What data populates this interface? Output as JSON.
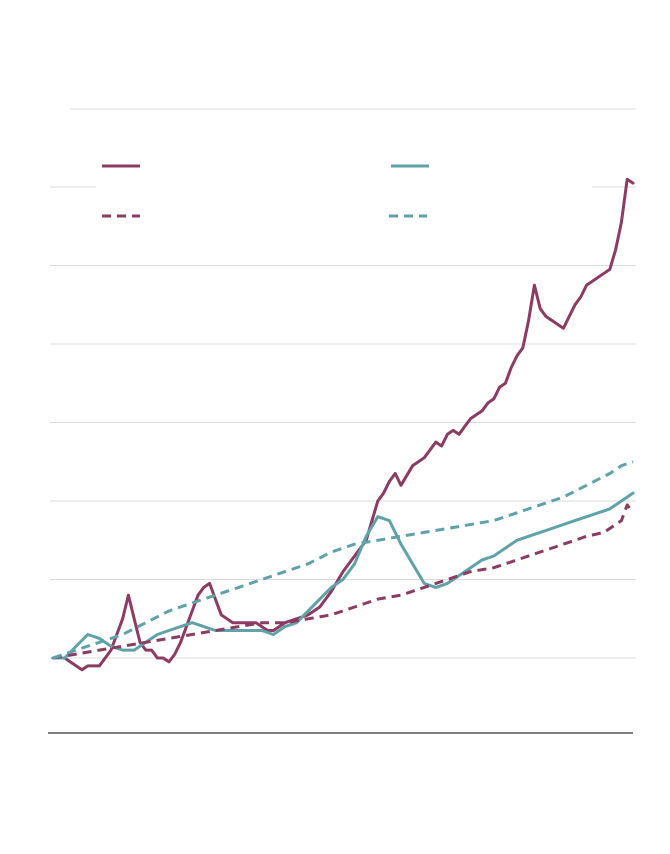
{
  "chart_data": {
    "type": "line",
    "title": "",
    "xlabel": "",
    "ylabel": "",
    "grid": true,
    "ylim": [
      -1,
      7
    ],
    "xlim": [
      0,
      100
    ],
    "y_gridlines": [
      0,
      1,
      2,
      3,
      4,
      5,
      6
    ],
    "legend": {
      "placement": "top",
      "entries": [
        {
          "series": "s1",
          "label": ""
        },
        {
          "series": "s2",
          "label": ""
        },
        {
          "series": "s3",
          "label": ""
        },
        {
          "series": "s4",
          "label": ""
        }
      ]
    },
    "series": [
      {
        "id": "s1",
        "color": "#8c3b63",
        "style": "solid",
        "x": [
          0,
          2,
          4,
          5,
          6,
          8,
          10,
          12,
          13,
          14,
          15,
          16,
          17,
          18,
          19,
          20,
          21,
          22,
          23,
          24,
          25,
          26,
          27,
          28,
          29,
          30,
          31,
          32,
          33,
          34,
          35,
          36,
          37,
          38,
          40,
          42,
          44,
          46,
          48,
          50,
          52,
          54,
          55,
          56,
          57,
          58,
          59,
          60,
          62,
          64,
          66,
          67,
          68,
          69,
          70,
          71,
          72,
          73,
          74,
          75,
          76,
          77,
          78,
          79,
          80,
          81,
          82,
          83,
          84,
          85,
          86,
          87,
          88,
          89,
          90,
          91,
          92,
          93,
          94,
          95,
          96,
          97,
          98,
          99,
          100
        ],
        "y": [
          0,
          0,
          -0.1,
          -0.15,
          -0.1,
          -0.1,
          0.1,
          0.5,
          0.8,
          0.5,
          0.2,
          0.1,
          0.1,
          0,
          0,
          -0.05,
          0.05,
          0.2,
          0.4,
          0.6,
          0.8,
          0.9,
          0.95,
          0.75,
          0.55,
          0.5,
          0.45,
          0.45,
          0.45,
          0.45,
          0.45,
          0.4,
          0.35,
          0.35,
          0.45,
          0.5,
          0.55,
          0.65,
          0.85,
          1.1,
          1.3,
          1.5,
          1.75,
          2,
          2.1,
          2.25,
          2.35,
          2.2,
          2.45,
          2.55,
          2.75,
          2.7,
          2.85,
          2.9,
          2.85,
          2.95,
          3.05,
          3.1,
          3.15,
          3.25,
          3.3,
          3.45,
          3.5,
          3.7,
          3.85,
          3.95,
          4.3,
          4.75,
          4.45,
          4.35,
          4.3,
          4.25,
          4.2,
          4.35,
          4.5,
          4.6,
          4.75,
          4.8,
          4.85,
          4.9,
          4.95,
          5.2,
          5.55,
          6.1,
          6.05
        ]
      },
      {
        "id": "s2",
        "color": "#5fa3a8",
        "style": "solid",
        "x": [
          0,
          2,
          4,
          6,
          8,
          10,
          12,
          14,
          16,
          18,
          20,
          22,
          24,
          26,
          28,
          30,
          32,
          34,
          36,
          38,
          40,
          42,
          44,
          46,
          48,
          50,
          52,
          54,
          56,
          58,
          60,
          62,
          64,
          66,
          68,
          70,
          72,
          74,
          76,
          78,
          80,
          82,
          84,
          86,
          88,
          90,
          92,
          94,
          96,
          98,
          100
        ],
        "y": [
          0,
          0,
          0.15,
          0.3,
          0.25,
          0.15,
          0.1,
          0.1,
          0.2,
          0.3,
          0.35,
          0.4,
          0.45,
          0.4,
          0.35,
          0.35,
          0.35,
          0.35,
          0.35,
          0.3,
          0.4,
          0.45,
          0.6,
          0.75,
          0.9,
          1.0,
          1.2,
          1.55,
          1.8,
          1.75,
          1.45,
          1.2,
          0.95,
          0.9,
          0.95,
          1.05,
          1.15,
          1.25,
          1.3,
          1.4,
          1.5,
          1.55,
          1.6,
          1.65,
          1.7,
          1.75,
          1.8,
          1.85,
          1.9,
          2.0,
          2.1
        ]
      },
      {
        "id": "s3",
        "color": "#8c3b63",
        "style": "dashed",
        "x": [
          0,
          4,
          8,
          12,
          16,
          20,
          24,
          28,
          32,
          36,
          40,
          44,
          48,
          52,
          56,
          60,
          64,
          68,
          72,
          76,
          80,
          84,
          88,
          92,
          95,
          97,
          98,
          99,
          100
        ],
        "y": [
          0,
          0.05,
          0.1,
          0.15,
          0.2,
          0.25,
          0.3,
          0.35,
          0.4,
          0.45,
          0.45,
          0.5,
          0.55,
          0.65,
          0.75,
          0.8,
          0.9,
          1.0,
          1.1,
          1.15,
          1.25,
          1.35,
          1.45,
          1.55,
          1.6,
          1.7,
          1.75,
          1.95,
          1.85
        ]
      },
      {
        "id": "s4",
        "color": "#5fa3a8",
        "style": "dashed",
        "x": [
          0,
          4,
          8,
          12,
          16,
          20,
          24,
          28,
          32,
          36,
          40,
          44,
          48,
          52,
          56,
          60,
          64,
          68,
          72,
          76,
          80,
          84,
          88,
          92,
          96,
          98,
          100
        ],
        "y": [
          0,
          0.1,
          0.2,
          0.3,
          0.45,
          0.6,
          0.7,
          0.8,
          0.9,
          1.0,
          1.1,
          1.2,
          1.35,
          1.45,
          1.5,
          1.55,
          1.6,
          1.65,
          1.7,
          1.75,
          1.85,
          1.95,
          2.05,
          2.2,
          2.35,
          2.45,
          2.5
        ]
      }
    ]
  }
}
